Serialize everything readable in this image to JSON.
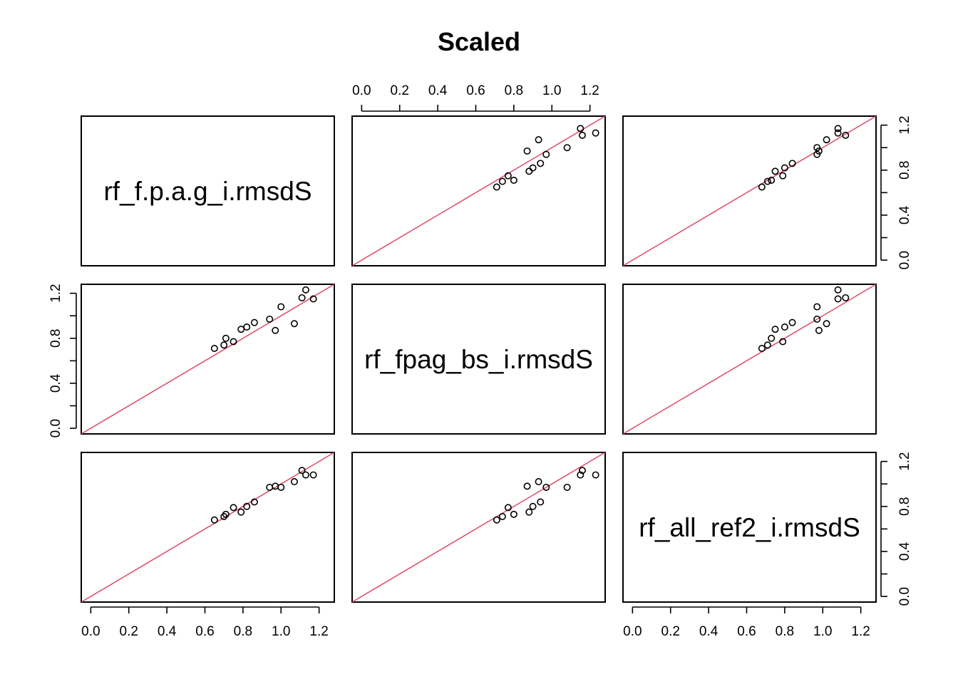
{
  "chart_data": {
    "type": "scatter",
    "plot_kind": "pairs-matrix",
    "title": "Scaled",
    "variables": [
      "rf_f.p.a.g_i.rmsdS",
      "rf_fpag_bs_i.rmsdS",
      "rf_all_ref2_i.rmsdS"
    ],
    "axis_range": [
      -0.05,
      1.28
    ],
    "ticks": [
      "0.0",
      "0.2",
      "0.4",
      "0.6",
      "0.8",
      "1.0",
      "1.2"
    ],
    "side_ticks": [
      "0.0",
      "0.4",
      "0.8",
      "1.2"
    ],
    "reference_line": {
      "type": "identity",
      "slope": 1,
      "intercept": 0,
      "color": "#DF536B"
    },
    "point_color": "#000000",
    "observations": {
      "rf_f.p.a.g_i.rmsdS": [
        0.65,
        0.7,
        0.71,
        0.75,
        0.79,
        0.82,
        0.86,
        0.94,
        0.97,
        1.0,
        1.07,
        1.11,
        1.13,
        1.17
      ],
      "rf_fpag_bs_i.rmsdS": [
        0.71,
        0.74,
        0.8,
        0.77,
        0.88,
        0.9,
        0.94,
        0.97,
        0.87,
        1.08,
        0.93,
        1.16,
        1.23,
        1.15
      ],
      "rf_all_ref2_i.rmsdS": [
        0.68,
        0.71,
        0.73,
        0.79,
        0.75,
        0.8,
        0.84,
        0.97,
        0.98,
        0.97,
        1.02,
        1.12,
        1.08,
        1.08
      ]
    },
    "grid": false,
    "legend": "none"
  }
}
